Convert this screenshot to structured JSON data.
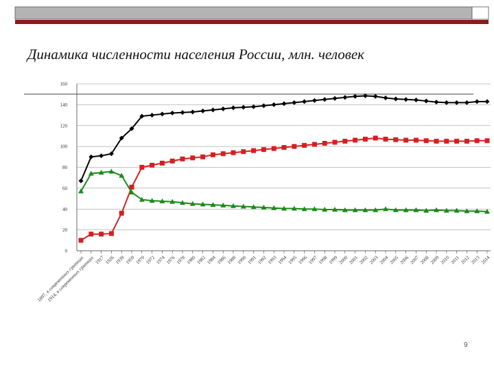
{
  "title": "Динамика численности населения России, млн. человек",
  "slide_number": "9",
  "chart_data": {
    "type": "line",
    "categories": [
      "1897, в современных границах",
      "1914, в современных границах",
      "1917",
      "1926",
      "1939",
      "1959",
      "1970",
      "1972",
      "1974",
      "1976",
      "1978",
      "1980",
      "1982",
      "1984",
      "1986",
      "1988",
      "1990",
      "1991",
      "1992",
      "1993",
      "1994",
      "1995",
      "1996",
      "1997",
      "1998",
      "1999",
      "2000",
      "2001",
      "2002",
      "2003",
      "2004",
      "2005",
      "2006",
      "2007",
      "2008",
      "2009",
      "2010",
      "2011",
      "2012",
      "2013",
      "2014"
    ],
    "series": [
      {
        "color": "#000000",
        "marker": "diamond",
        "values": [
          67,
          90,
          91,
          93,
          108,
          117,
          129,
          130,
          131,
          132,
          132.5,
          133,
          134,
          135,
          136,
          137,
          137.5,
          138,
          139,
          140,
          141,
          142,
          143,
          144,
          145,
          146,
          147,
          148,
          148.5,
          148,
          146.5,
          145.5,
          145,
          144.5,
          143.5,
          142.5,
          142,
          142,
          142,
          143,
          143
        ]
      },
      {
        "color": "#d42020",
        "marker": "square",
        "values": [
          10,
          16,
          16,
          16.5,
          36,
          61,
          80,
          82,
          84,
          86,
          88,
          89,
          90,
          92,
          93,
          94,
          95,
          96,
          97,
          98,
          99,
          100,
          101,
          102,
          103,
          104,
          105,
          106,
          107,
          108,
          107,
          106.5,
          106,
          106,
          105.5,
          105,
          105,
          105,
          105,
          105.5,
          105.5
        ]
      },
      {
        "color": "#1a8a1a",
        "marker": "triangle",
        "values": [
          57,
          74,
          75,
          76,
          72,
          56,
          49,
          48,
          47.5,
          47,
          46,
          45,
          44.5,
          44,
          43.5,
          43,
          42.5,
          42,
          41.5,
          41,
          40.5,
          40.5,
          40,
          40,
          39.5,
          39.5,
          39,
          39,
          39,
          39,
          40,
          39,
          39,
          39,
          38.5,
          39,
          38.5,
          38.5,
          38,
          38,
          37.5
        ]
      }
    ],
    "ylim": [
      0,
      160
    ],
    "yticks": [
      0,
      20,
      40,
      60,
      80,
      100,
      120,
      140,
      160
    ],
    "grid": true
  }
}
